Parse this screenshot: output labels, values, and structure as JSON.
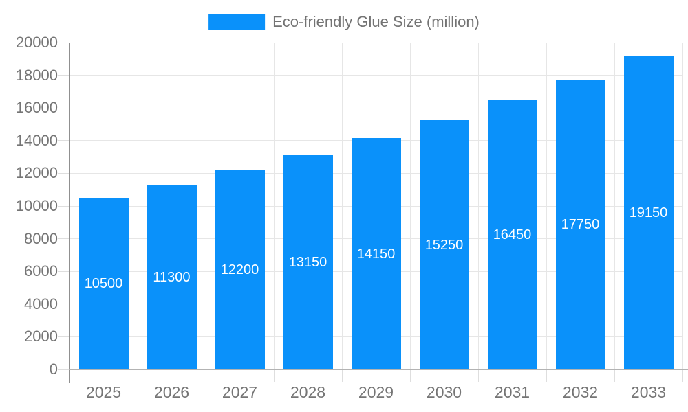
{
  "legend": {
    "label": "Eco-friendly Glue Size (million)",
    "swatch_color": "#0a91fa"
  },
  "chart_data": {
    "type": "bar",
    "title": "",
    "xlabel": "",
    "ylabel": "",
    "categories": [
      "2025",
      "2026",
      "2027",
      "2028",
      "2029",
      "2030",
      "2031",
      "2032",
      "2033"
    ],
    "series": [
      {
        "name": "Eco-friendly Glue Size (million)",
        "values": [
          10500,
          11300,
          12200,
          13150,
          14150,
          15250,
          16450,
          17750,
          19150
        ]
      }
    ],
    "bar_value_labels": [
      "10500",
      "11300",
      "12200",
      "13150",
      "14150",
      "15250",
      "16450",
      "17750",
      "19150"
    ],
    "ylim": [
      0,
      20000
    ],
    "yticks": [
      0,
      2000,
      4000,
      6000,
      8000,
      10000,
      12000,
      14000,
      16000,
      18000,
      20000
    ],
    "grid": true,
    "legend_position": "top",
    "colors": {
      "bar": "#0a91fa",
      "bar_label_text": "#ffffff",
      "grid_line": "#e6e6e6",
      "tick_line": "#dedede",
      "y_axis_line": "#909090",
      "x_axis_line": "#b3b3b3",
      "axis_text": "#757575",
      "legend_text": "#737373",
      "background": "#ffffff"
    }
  }
}
